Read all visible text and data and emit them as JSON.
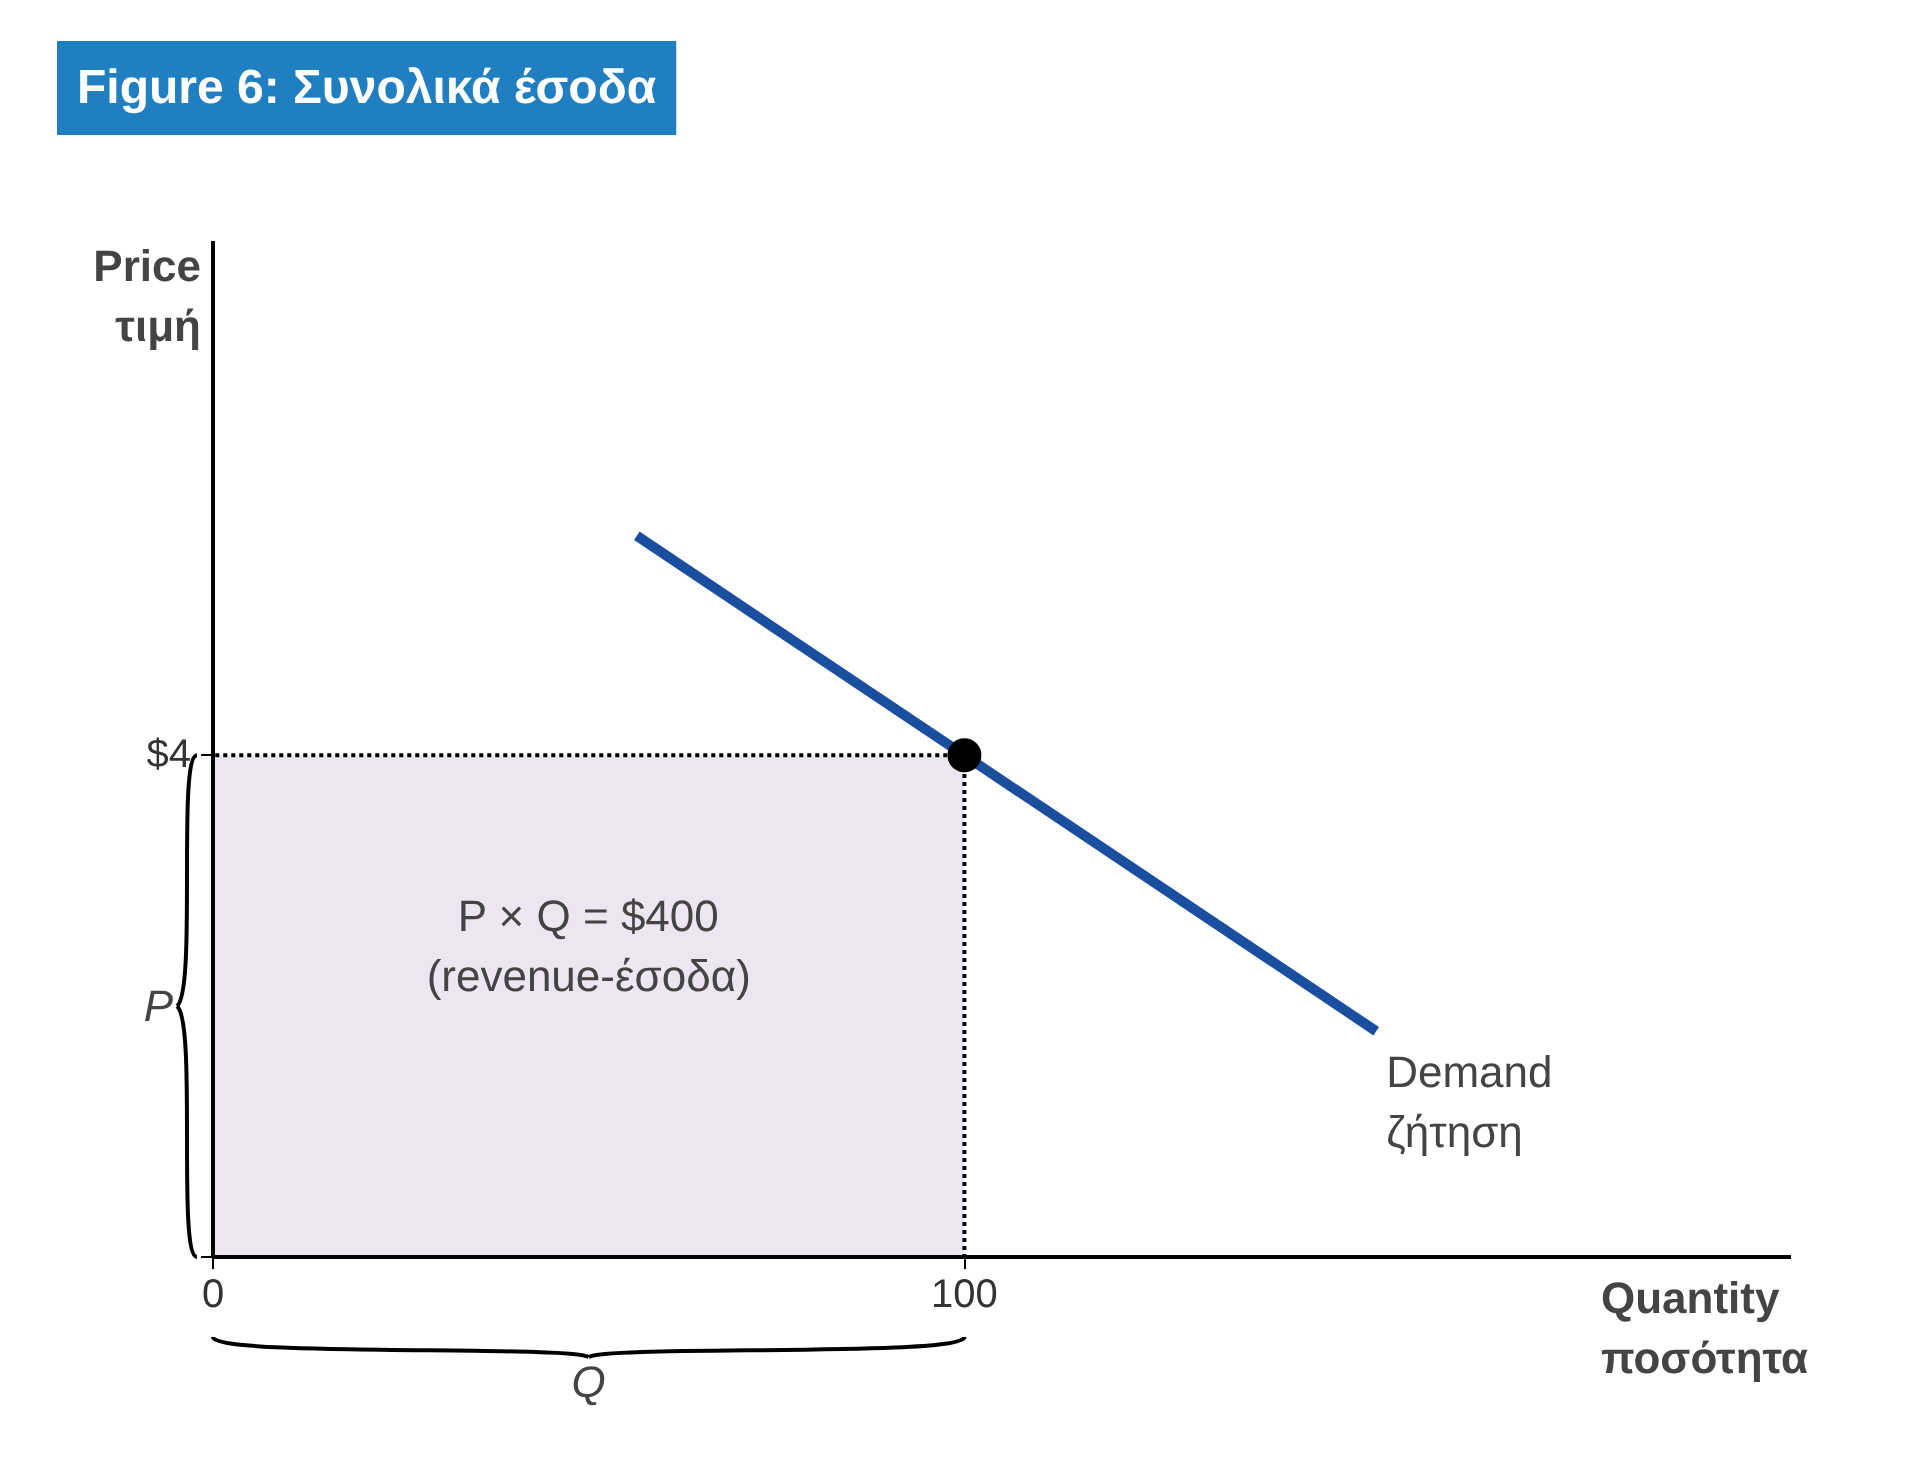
{
  "chart_data": {
    "type": "line",
    "title": "Figure 6: Συνολικά έσοδα",
    "xlabel": "Quantity\nποσότητα",
    "ylabel": "Price\nτιμή",
    "xlim": [
      0,
      210
    ],
    "ylim": [
      0,
      8.1
    ],
    "xticks": [
      0,
      100
    ],
    "yticks": [
      {
        "value": 0,
        "label": null
      },
      {
        "value": 4,
        "label": "$4"
      }
    ],
    "grid": false,
    "series": [
      {
        "type": "area",
        "color": "#ece6f2",
        "x": [
          0,
          100
        ],
        "values": [
          4,
          4
        ]
      },
      {
        "name": "Demand\nζήτηση",
        "color": "#1a4fa0",
        "x": [
          56.4,
          154.8
        ],
        "values": [
          5.75,
          1.8
        ]
      },
      {
        "type": "scatter",
        "color": "#000000",
        "x": [
          100
        ],
        "values": [
          4
        ],
        "marker": "circle"
      }
    ],
    "annotations": [
      "P × Q = $400\n(revenue-έσοδα)",
      "P",
      "Q"
    ]
  }
}
